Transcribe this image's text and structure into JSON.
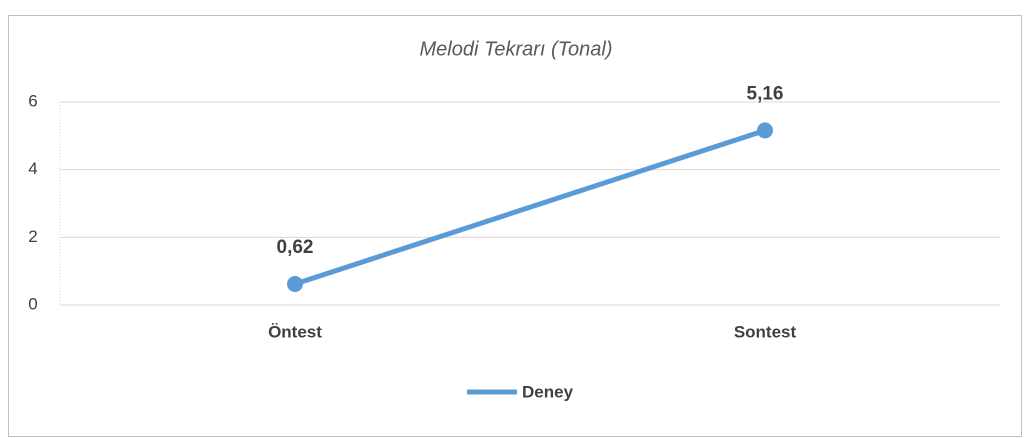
{
  "chart_data": {
    "type": "line",
    "title": "Melodi Tekrarı (Tonal)",
    "categories": [
      "Öntest",
      "Sontest"
    ],
    "series": [
      {
        "name": "Deney",
        "color": "#5b9bd5",
        "values": [
          0.62,
          5.16
        ],
        "value_labels": [
          "0,62",
          "5,16"
        ]
      }
    ],
    "ylim": [
      0,
      6
    ],
    "yticks": [
      0,
      2,
      4,
      6
    ],
    "grid": true,
    "legend": "bottom"
  }
}
